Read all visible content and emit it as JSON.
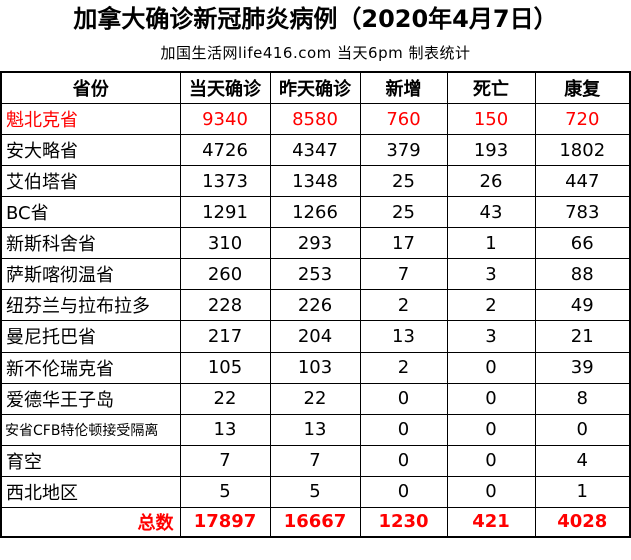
{
  "title": "加拿大确诊新冠肺炎病例（2020年4月7日）",
  "subtitle": "加国生活网life416.com 当天6pm 制表统计",
  "headers": [
    "省份",
    "当天确诊",
    "昨天确诊",
    "新增",
    "死亡",
    "康复"
  ],
  "rows": [
    {
      "name": "魁北克省",
      "vals": [
        "9340",
        "8580",
        "760",
        "150",
        "720"
      ]
    },
    {
      "name": "安大略省",
      "vals": [
        "4726",
        "4347",
        "379",
        "193",
        "1802"
      ]
    },
    {
      "name": "艾伯塔省",
      "vals": [
        "1373",
        "1348",
        "25",
        "26",
        "447"
      ]
    },
    {
      "name": "BC省",
      "vals": [
        "1291",
        "1266",
        "25",
        "43",
        "783"
      ]
    },
    {
      "name": "新斯科舍省",
      "vals": [
        "310",
        "293",
        "17",
        "1",
        "66"
      ]
    },
    {
      "name": "萨斯喀彻温省",
      "vals": [
        "260",
        "253",
        "7",
        "3",
        "88"
      ]
    },
    {
      "name": "纽芬兰与拉布拉多",
      "vals": [
        "228",
        "226",
        "2",
        "2",
        "49"
      ]
    },
    {
      "name": "曼尼托巴省",
      "vals": [
        "217",
        "204",
        "13",
        "3",
        "21"
      ]
    },
    {
      "name": "新不伦瑞克省",
      "vals": [
        "105",
        "103",
        "2",
        "0",
        "39"
      ]
    },
    {
      "name": "爱德华王子岛",
      "vals": [
        "22",
        "22",
        "0",
        "0",
        "8"
      ]
    },
    {
      "name": "安省CFB特伦顿接受隔离",
      "vals": [
        "13",
        "13",
        "0",
        "0",
        "0"
      ]
    },
    {
      "name": "育空",
      "vals": [
        "7",
        "7",
        "0",
        "0",
        "4"
      ]
    },
    {
      "name": "西北地区",
      "vals": [
        "5",
        "5",
        "0",
        "0",
        "1"
      ]
    }
  ],
  "total": {
    "name": "总数",
    "vals": [
      "17897",
      "16667",
      "1230",
      "421",
      "4028"
    ]
  },
  "colors": {
    "highlight": "#ff0000",
    "text": "#000000",
    "border": "#000000"
  }
}
